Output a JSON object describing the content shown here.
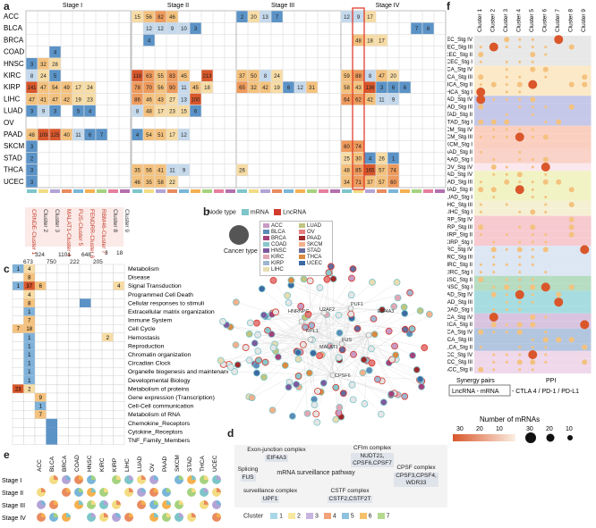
{
  "panel_labels": {
    "a": "a",
    "b": "b",
    "c": "c",
    "d": "d",
    "e": "e",
    "f": "f"
  },
  "panel_a": {
    "stages": [
      "Stage I",
      "Stage II",
      "Stage III",
      "Stage IV"
    ],
    "cancers": [
      "ACC",
      "BLCA",
      "BRCA",
      "COAD",
      "HNSC",
      "KIRC",
      "KIRP",
      "LIHC",
      "LUAD",
      "OV",
      "PAAD",
      "SKCM",
      "STAD",
      "THCA",
      "UCEC"
    ],
    "stage_I_values": [
      [
        "",
        "",
        "",
        "",
        "",
        "",
        "",
        "",
        ""
      ],
      [
        "",
        "",
        "",
        "",
        "",
        "",
        "",
        "",
        ""
      ],
      [
        "",
        "",
        "",
        "",
        "",
        "",
        "",
        "",
        ""
      ],
      [
        "",
        "",
        "4",
        "",
        "",
        "",
        "",
        "",
        ""
      ],
      [
        "3",
        "32",
        "28",
        "",
        "",
        "",
        "",
        "",
        ""
      ],
      [
        "8",
        "24",
        "5",
        "",
        "",
        "",
        "",
        "",
        ""
      ],
      [
        "141",
        "47",
        "54",
        "49",
        "17",
        "24",
        "",
        "",
        ""
      ],
      [
        "47",
        "41",
        "47",
        "42",
        "19",
        "23",
        "",
        "",
        ""
      ],
      [
        "3",
        "9",
        "3",
        "",
        "5",
        "4",
        "",
        "",
        ""
      ],
      [
        "",
        "",
        "",
        "",
        "",
        "",
        "",
        "",
        ""
      ],
      [
        "48",
        "109",
        "125",
        "40",
        "11",
        "6",
        "7",
        "",
        ""
      ],
      [
        "3",
        "",
        "",
        "",
        "",
        "",
        "",
        "",
        ""
      ],
      [
        "2",
        "",
        "",
        "",
        "",
        "",
        "",
        "",
        ""
      ],
      [
        "3",
        "",
        "",
        "",
        "",
        "",
        "",
        "",
        ""
      ],
      [
        "3",
        "",
        "",
        "",
        "",
        "",
        "",
        "",
        ""
      ]
    ],
    "stage_II_values": [
      [
        "15",
        "56",
        "82",
        "46",
        "",
        "",
        "",
        "",
        ""
      ],
      [
        "",
        "12",
        "12",
        "9",
        "10",
        "3",
        "",
        "",
        ""
      ],
      [
        "",
        "4",
        "",
        "",
        "",
        "",
        "",
        "",
        ""
      ],
      [
        "",
        "",
        "",
        "",
        "",
        "",
        "",
        "",
        ""
      ],
      [
        "",
        "",
        "",
        "",
        "",
        "",
        "",
        "",
        ""
      ],
      [
        "118",
        "63",
        "55",
        "83",
        "45",
        "",
        "213",
        "",
        ""
      ],
      [
        "78",
        "70",
        "56",
        "90",
        "11",
        "45",
        "18",
        "",
        ""
      ],
      [
        "86",
        "46",
        "43",
        "27",
        "13",
        "100",
        "",
        "",
        ""
      ],
      [
        "8",
        "48",
        "17",
        "23",
        "15",
        "6",
        "",
        "",
        ""
      ],
      [
        "",
        "",
        "",
        "",
        "",
        "",
        "",
        "",
        ""
      ],
      [
        "4",
        "54",
        "51",
        "17",
        "12",
        "",
        "",
        "",
        ""
      ],
      [
        "",
        "",
        "",
        "",
        "",
        "",
        "",
        "",
        ""
      ],
      [
        "",
        "",
        "",
        "",
        "",
        "",
        "",
        "",
        ""
      ],
      [
        "35",
        "56",
        "41",
        "11",
        "9",
        "",
        "",
        "",
        ""
      ],
      [
        "46",
        "35",
        "58",
        "22",
        "",
        "",
        "",
        "",
        ""
      ]
    ],
    "stage_III_values": [
      [
        "2",
        "20",
        "13",
        "7",
        "",
        "",
        "",
        "",
        ""
      ],
      [
        "",
        "",
        "",
        "",
        "",
        "",
        "",
        "",
        ""
      ],
      [
        "",
        "",
        "",
        "",
        "",
        "",
        "",
        "",
        ""
      ],
      [
        "",
        "",
        "",
        "",
        "",
        "",
        "",
        "",
        ""
      ],
      [
        "",
        "",
        "",
        "",
        "",
        "",
        "",
        "",
        ""
      ],
      [
        "37",
        "50",
        "8",
        "24",
        "",
        "",
        "",
        "",
        ""
      ],
      [
        "65",
        "32",
        "42",
        "19",
        "6",
        "12",
        "31",
        "",
        ""
      ],
      [
        "",
        "",
        "",
        "",
        "",
        "",
        "",
        "",
        ""
      ],
      [
        "",
        "",
        "",
        "",
        "",
        "",
        "",
        "",
        ""
      ],
      [
        "",
        "",
        "",
        "",
        "",
        "",
        "",
        "",
        ""
      ],
      [
        "",
        "",
        "",
        "",
        "",
        "",
        "",
        "",
        ""
      ],
      [
        "",
        "",
        "",
        "",
        "",
        "",
        "",
        "",
        ""
      ],
      [
        "",
        "",
        "",
        "",
        "",
        "",
        "",
        "",
        ""
      ],
      [
        "26",
        "",
        "",
        "",
        "",
        "",
        "",
        "",
        ""
      ],
      [
        "",
        "",
        "",
        "",
        "",
        "",
        "",
        "",
        ""
      ]
    ],
    "stage_IV_values": [
      [
        "12",
        "9",
        "17",
        "",
        "",
        "",
        "",
        "",
        ""
      ],
      [
        "",
        "",
        "",
        "",
        "",
        "",
        "7",
        "6",
        ""
      ],
      [
        "",
        "48",
        "18",
        "17",
        "",
        "",
        "",
        "",
        ""
      ],
      [
        "",
        "",
        "",
        "",
        "",
        "",
        "",
        "",
        ""
      ],
      [
        "",
        "",
        "",
        "",
        "",
        "",
        "",
        "",
        ""
      ],
      [
        "59",
        "88",
        "8",
        "47",
        "20",
        "",
        "",
        "",
        ""
      ],
      [
        "58",
        "43",
        "136",
        "3",
        "6",
        "6",
        "",
        "",
        ""
      ],
      [
        "64",
        "62",
        "42",
        "11",
        "9",
        "",
        "",
        "",
        ""
      ],
      [
        "",
        "",
        "",
        "",
        "",
        "",
        "",
        "",
        ""
      ],
      [
        "",
        "",
        "",
        "",
        "",
        "",
        "",
        "",
        ""
      ],
      [
        "",
        "",
        "",
        "",
        "",
        "",
        "",
        "",
        ""
      ],
      [
        "60",
        "74",
        "",
        "",
        "",
        "",
        "",
        "",
        ""
      ],
      [
        "25",
        "30",
        "4",
        "26",
        "1",
        "",
        "",
        "",
        ""
      ],
      [
        "48",
        "85",
        "165",
        "57",
        "74",
        "",
        "",
        "",
        ""
      ],
      [
        "34",
        "71",
        "37",
        "57",
        "60",
        "",
        "",
        "",
        ""
      ]
    ]
  },
  "clusters_a": {
    "labels": [
      "CRNDE-Cluster 1",
      "Cluster 2",
      "Cluster 3",
      "MALAT1-Cluster 4",
      "FUS-Cluster 5",
      "FENDRR-Cluster 6",
      "RBM46-Cluster 7",
      "Cluster 8",
      "Cluster 9"
    ],
    "counts": [
      "673",
      "324",
      "750",
      "1101",
      "222",
      "648",
      "205",
      "3",
      "18"
    ]
  },
  "node_type": {
    "title": "Node type",
    "mrna": "mRNA",
    "lncrna": "LncRNA",
    "cancer": "Cancer type"
  },
  "cancer_legend": [
    "ACC",
    "BLCA",
    "BRCA",
    "COAD",
    "HNSC",
    "KIRC",
    "KIRP",
    "LIHC",
    "LUAD",
    "OV",
    "PAAD",
    "SKCM",
    "STAD",
    "THCA",
    "UCEC"
  ],
  "cancer_colors": [
    "#c89ac6",
    "#5d8bb8",
    "#a3427a",
    "#89c7cc",
    "#7d5a9e",
    "#e2a7b4",
    "#9fb5d1",
    "#e8dcb0",
    "#c0c57e",
    "#e67e7e",
    "#9e2a2a",
    "#f3b08a",
    "#666b9d",
    "#dc8a3f",
    "#3c6aa3"
  ],
  "network_labels": [
    "HNRNPC",
    "U2AF2",
    "PUF1",
    "RPL1",
    "EIF4A3",
    "MALAT1",
    "FUS",
    "CPSF6"
  ],
  "panel_c": {
    "pathways": [
      "Metabolism",
      "Disease",
      "Signal Transduction",
      "Programmed Cell Death",
      "Cellular responses to stimuli",
      "Extracellular matrix organization",
      "Immune System",
      "Cell Cycle",
      "Hemostasis",
      "Reproduction",
      "Chromatin organization",
      "Circadian Clock",
      "Organelle biogenesis and maintenance",
      "Developmental Biology",
      "Metabolism of proteins",
      "Gene expression (Transcription)",
      "Cell-Cell communication",
      "Metabolism of RNA",
      "Chemokine_Receptors",
      "Cytokine_Receptors",
      "TNF_Family_Members"
    ],
    "values": [
      [
        "1",
        "4",
        "",
        "",
        "",
        "",
        "",
        "",
        "",
        ""
      ],
      [
        "",
        "8",
        "",
        "",
        "",
        "",
        "",
        "",
        "",
        ""
      ],
      [
        "1",
        "37",
        "6",
        "",
        "",
        "",
        "",
        "",
        "",
        "4"
      ],
      [
        "",
        "4",
        "",
        "",
        "",
        "",
        "",
        "",
        "",
        ""
      ],
      [
        "",
        "8",
        "",
        "",
        "",
        "",
        "",
        "",
        "",
        ""
      ],
      [
        "",
        "1",
        "",
        "",
        "",
        "",
        "",
        "",
        "",
        ""
      ],
      [
        "",
        "7",
        "",
        "",
        "",
        "",
        "",
        "",
        "",
        ""
      ],
      [
        "7",
        "18",
        "",
        "",
        "",
        "",
        "",
        "",
        "",
        ""
      ],
      [
        "",
        "1",
        "",
        "",
        "",
        "",
        "",
        "",
        "2",
        ""
      ],
      [
        "",
        "1",
        "",
        "",
        "",
        "",
        "",
        "",
        "",
        ""
      ],
      [
        "",
        "1",
        "",
        "",
        "",
        "",
        "",
        "",
        "",
        ""
      ],
      [
        "",
        "1",
        "",
        "",
        "",
        "",
        "",
        "",
        "",
        ""
      ],
      [
        "",
        "1",
        "",
        "",
        "",
        "",
        "",
        "",
        "",
        ""
      ],
      [
        "",
        "1",
        "",
        "",
        "",
        "",
        "",
        "",
        "",
        ""
      ],
      [
        "23",
        "2",
        "",
        "",
        "",
        "",
        "",
        "",
        "",
        ""
      ],
      [
        "",
        "",
        "9",
        "",
        "",
        "",
        "",
        "",
        "",
        ""
      ],
      [
        "",
        "",
        "1",
        "",
        "",
        "",
        "",
        "",
        "",
        ""
      ],
      [
        "",
        "",
        "7",
        "",
        "",
        "",
        "",
        "",
        "",
        ""
      ],
      [
        "",
        "",
        "",
        "",
        "",
        "",
        "",
        "",
        "",
        ""
      ],
      [
        "",
        "",
        "",
        "",
        "",
        "",
        "",
        "",
        "",
        ""
      ],
      [
        "",
        "",
        "",
        "",
        "",
        "",
        "",
        "",
        "",
        ""
      ]
    ]
  },
  "panel_d": {
    "exon_junction": {
      "title": "Exon-junction complex",
      "gene": "EIF4A3"
    },
    "cfim": {
      "title": "CFIm complex",
      "genes": "NUDT21,\nCPSF6,CPSF7"
    },
    "splicing": {
      "title": "Splicing",
      "gene": "FUS"
    },
    "pathway": "mRNA surveillance pathway",
    "cpsf": {
      "title": "CPSF complex",
      "genes": "CPSF3,CPSF4,\nWDR33"
    },
    "surveillance": {
      "title": "surveillance complex",
      "gene": "UPF1"
    },
    "cstf": {
      "title": "CSTF complex",
      "genes": "CSTF2,CSTF2T"
    },
    "cluster_legend_title": "Cluster",
    "cluster_legend": [
      "1",
      "2",
      "3",
      "4",
      "5",
      "6",
      "7"
    ],
    "cluster_colors": [
      "#a8d8e8",
      "#f7e8a0",
      "#c7b5e0",
      "#f0a37a",
      "#8fc1e0",
      "#f5c26b",
      "#b5d98e"
    ]
  },
  "panel_e": {
    "cancers": [
      "ACC",
      "BLCA",
      "BRCA",
      "COAD",
      "HNSC",
      "KIRC",
      "KIRP",
      "LIHC",
      "LUAD",
      "OV",
      "PAAD",
      "SKCM",
      "STAD",
      "THCA",
      "UCEC"
    ],
    "stages": [
      "Stage I",
      "Stage II",
      "Stage III",
      "Stage IV"
    ]
  },
  "panel_f": {
    "clusters": [
      "Cluster 1",
      "Cluster 2",
      "Cluster 3",
      "Cluster 4",
      "Cluster 5",
      "Cluster 6",
      "Cluster 7",
      "Cluster 8",
      "Cluster 9"
    ],
    "rows": [
      "UCEC_Stg IV",
      "UCEC_Stg III",
      "UCEC_Stg II",
      "UCEC_Stg I",
      "THCA_Stg IV",
      "THCA_Stg III",
      "THCA_Stg II",
      "THCA_Stg I",
      "STAD_Stg IV",
      "STAD_Stg III",
      "STAD_Stg II",
      "STAD_Stg I",
      "SKCM_Stg IV",
      "SKCM_Stg III",
      "SKCM_Stg I",
      "PAAD_Stg II",
      "PAAD_Stg I",
      "OV_Stg IV",
      "LUAD_Stg IV",
      "LUAD_Stg III",
      "LUAD_Stg II",
      "LUAD_Stg I",
      "LIHC_Stg III",
      "LIHC_Stg I",
      "KIRP_Stg IV",
      "KIRP_Stg III",
      "KIRP_Stg II",
      "KIRP_Stg I",
      "KIRC_Stg IV",
      "KIRC_Stg III",
      "KIRC_Stg II",
      "KIRC_Stg I",
      "HNSC_Stg II",
      "HNSC_Stg I",
      "COAD_Stg IV",
      "COAD_Stg III",
      "COAD_Stg I",
      "BRCA_Stg IV",
      "BRCA_Stg II",
      "BLCA_Stg IV",
      "BLCA_Stg III",
      "BLCA_Stg II",
      "ACC_Stg IV",
      "ACC_Stg III",
      "ACC_Stg II"
    ],
    "row_colors": [
      "#e8e8e8",
      "#e8e8e8",
      "#e8e8e8",
      "#e8e8e8",
      "#fbe9c8",
      "#fbe9c8",
      "#fbe9c8",
      "#fbe9c8",
      "#c5c8e8",
      "#c5c8e8",
      "#c5c8e8",
      "#c5c8e8",
      "#fbcfc0",
      "#fbcfc0",
      "#fbcfc0",
      "#f9d2c8",
      "#f9d2c8",
      "#fbe8ee",
      "#f1f3c4",
      "#f1f3c4",
      "#f1f3c4",
      "#f1f3c4",
      "#f5f0d4",
      "#f5f0d4",
      "#f7cad0",
      "#f7cad0",
      "#f7cad0",
      "#f7cad0",
      "#dde6f3",
      "#dde6f3",
      "#dde6f3",
      "#dde6f3",
      "#b6dcc1",
      "#b6dcc1",
      "#a7dde0",
      "#a7dde0",
      "#a7dde0",
      "#d9c4e0",
      "#d9c4e0",
      "#b3c6e0",
      "#b3c6e0",
      "#b3c6e0",
      "#efd8ea",
      "#efd8ea",
      "#efd8ea"
    ],
    "synergy_label": "Synergy pairs",
    "ppi_label": "PPI",
    "pair_label": "LncRNA - mRNA",
    "ppi_text": "- CTLA 4 / PD-1 / PD-L1",
    "size_title": "Number of mRNAs",
    "color_ticks": [
      "30",
      "20",
      "10"
    ],
    "size_ticks": [
      "30",
      "20",
      "10"
    ]
  }
}
